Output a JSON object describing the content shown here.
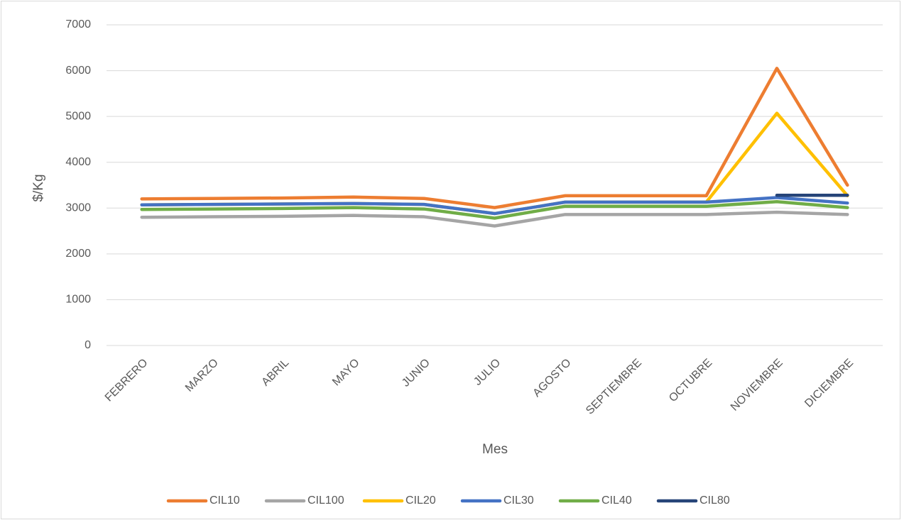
{
  "chart_data": {
    "type": "line",
    "x_label": "Mes",
    "y_label": "$/Kg",
    "categories": [
      "FEBRERO",
      "MARZO",
      "ABRIL",
      "MAYO",
      "JUNIO",
      "JULIO",
      "AGOSTO",
      "SEPTIEMBRE",
      "OCTUBRE",
      "NOVIEMBRE",
      "DICIEMBRE"
    ],
    "series": [
      {
        "name": "CIL10",
        "color": "#ed7d31",
        "values": [
          3200,
          3210,
          3220,
          3240,
          3210,
          3010,
          3270,
          3270,
          3270,
          6050,
          3500
        ]
      },
      {
        "name": "CIL100",
        "color": "#a5a5a5",
        "values": [
          2800,
          2810,
          2820,
          2840,
          2810,
          2610,
          2860,
          2860,
          2860,
          2910,
          2860
        ]
      },
      {
        "name": "CIL20",
        "color": "#ffc000",
        "values": [
          3070,
          3080,
          3090,
          3100,
          3080,
          2880,
          3130,
          3130,
          3130,
          5070,
          3270
        ]
      },
      {
        "name": "CIL30",
        "color": "#4472c4",
        "values": [
          3070,
          3080,
          3090,
          3100,
          3080,
          2880,
          3130,
          3130,
          3130,
          3230,
          3110
        ]
      },
      {
        "name": "CIL40",
        "color": "#70ad47",
        "values": [
          2970,
          2980,
          2990,
          3010,
          2980,
          2780,
          3040,
          3040,
          3040,
          3140,
          3010
        ]
      },
      {
        "name": "CIL80",
        "color": "#264478",
        "values": [
          null,
          null,
          null,
          null,
          null,
          null,
          null,
          null,
          null,
          3280,
          3280
        ]
      }
    ],
    "ylim": [
      0,
      7000
    ],
    "yticks": [
      0,
      1000,
      2000,
      3000,
      4000,
      5000,
      6000,
      7000
    ],
    "grid": true,
    "legend": "bottom"
  }
}
